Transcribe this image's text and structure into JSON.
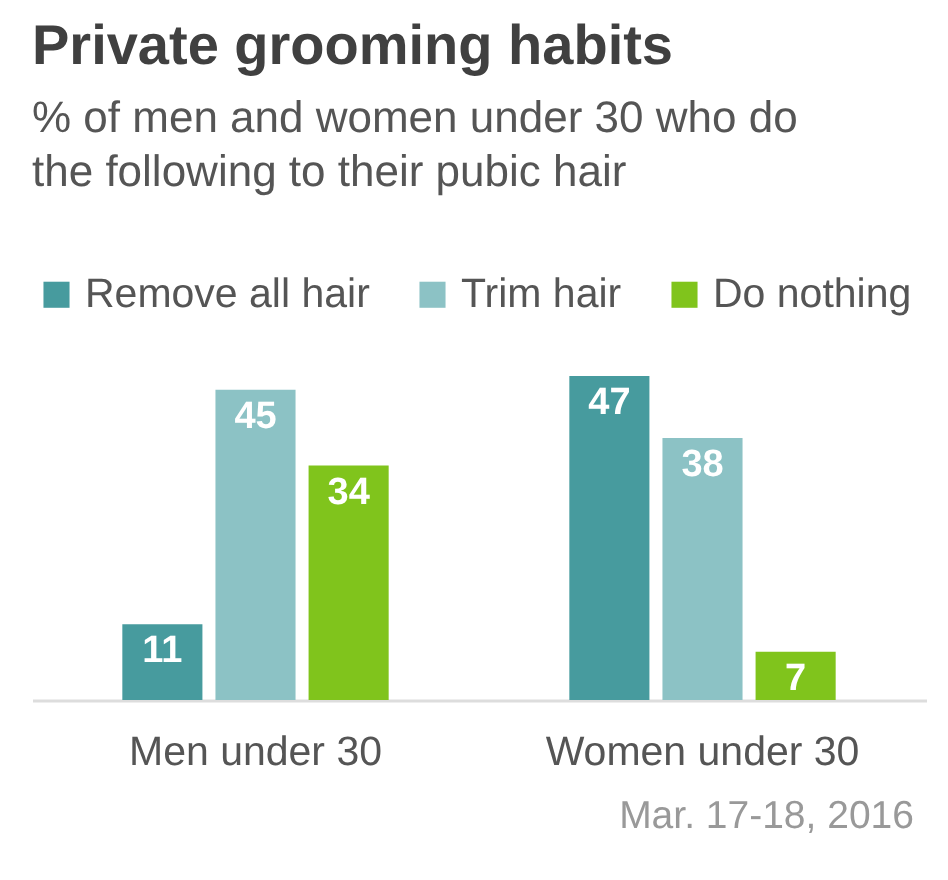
{
  "chart_data": {
    "type": "bar",
    "title": "Private grooming habits",
    "subtitle": "% of men and women under 30 who do the following to their pubic hair",
    "categories": [
      "Men under 30",
      "Women under 30"
    ],
    "series": [
      {
        "name": "Remove all hair",
        "color": "#479b9e",
        "values": [
          11,
          47
        ]
      },
      {
        "name": "Trim hair",
        "color": "#8cc2c5",
        "values": [
          45,
          38
        ]
      },
      {
        "name": "Do nothing",
        "color": "#80c41c",
        "values": [
          34,
          7
        ]
      }
    ],
    "data_labels": true,
    "legend": "top",
    "tick_labels": "x",
    "annotations": [
      "Mar. 17-18, 2016"
    ]
  }
}
